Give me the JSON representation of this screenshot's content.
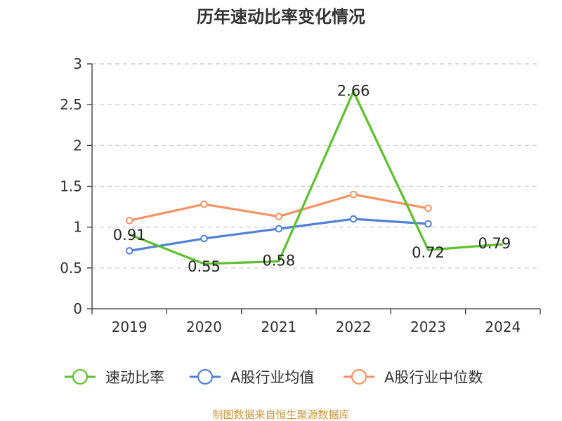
{
  "chart_data": {
    "type": "line",
    "title": "历年速动比率变化情况",
    "categories": [
      "2019",
      "2020",
      "2021",
      "2022",
      "2023",
      "2024"
    ],
    "ylim": [
      0,
      3
    ],
    "yticks": [
      "0",
      "0.5",
      "1",
      "1.5",
      "2",
      "2.5",
      "3"
    ],
    "grid": true,
    "legend_position": "bottom",
    "series": [
      {
        "name": "速动比率",
        "color": "#5cc12a",
        "values": [
          0.91,
          0.55,
          0.58,
          2.66,
          0.72,
          0.79
        ],
        "labels": [
          "0.91",
          "0.55",
          "0.58",
          "2.66",
          "0.72",
          "0.79"
        ]
      },
      {
        "name": "A股行业均值",
        "color": "#4e80d8",
        "values": [
          0.71,
          0.86,
          0.98,
          1.1,
          1.04,
          null
        ]
      },
      {
        "name": "A股行业中位数",
        "color": "#f59263",
        "values": [
          1.08,
          1.28,
          1.13,
          1.4,
          1.23,
          null
        ]
      }
    ]
  },
  "source": "制图数据来自恒生聚源数据库"
}
